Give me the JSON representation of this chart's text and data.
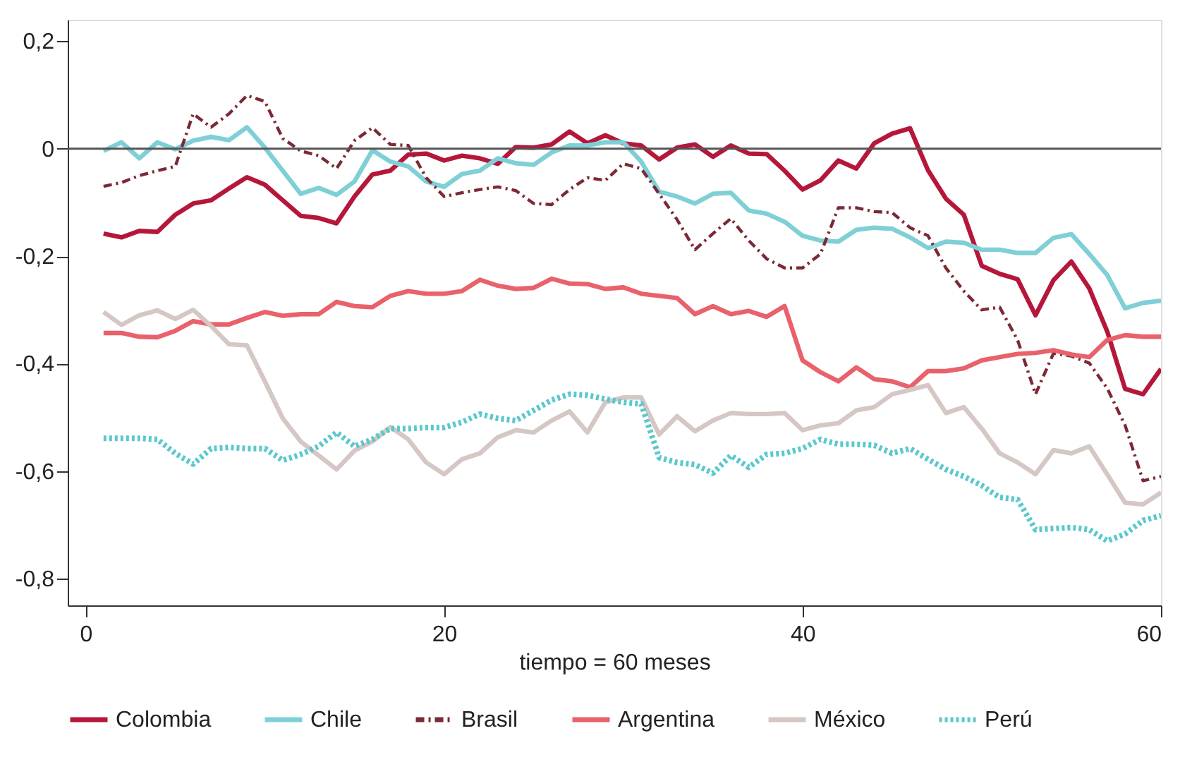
{
  "chart_data": {
    "type": "line",
    "xlabel": "tiempo = 60 meses",
    "x": [
      1,
      2,
      3,
      4,
      5,
      6,
      7,
      8,
      9,
      10,
      11,
      12,
      13,
      14,
      15,
      16,
      17,
      18,
      19,
      20,
      21,
      22,
      23,
      24,
      25,
      26,
      27,
      28,
      29,
      30,
      31,
      32,
      33,
      34,
      35,
      36,
      37,
      38,
      39,
      40,
      41,
      42,
      43,
      44,
      45,
      46,
      47,
      48,
      49,
      50,
      51,
      52,
      53,
      54,
      55,
      56,
      57,
      58,
      59,
      60
    ],
    "series": [
      {
        "name": "Colombia",
        "color": "#b5173a",
        "line_style": "solid",
        "values": [
          -0.158,
          -0.165,
          -0.153,
          -0.155,
          -0.123,
          -0.102,
          -0.096,
          -0.074,
          -0.053,
          -0.067,
          -0.096,
          -0.125,
          -0.129,
          -0.139,
          -0.089,
          -0.048,
          -0.041,
          -0.011,
          -0.009,
          -0.022,
          -0.013,
          -0.018,
          -0.028,
          0.003,
          0.002,
          0.008,
          0.032,
          0.01,
          0.025,
          0.01,
          0.006,
          -0.02,
          0.002,
          0.008,
          -0.015,
          0.006,
          -0.009,
          -0.01,
          -0.041,
          -0.076,
          -0.059,
          -0.022,
          -0.037,
          0.01,
          0.028,
          0.038,
          -0.04,
          -0.093,
          -0.123,
          -0.218,
          -0.233,
          -0.243,
          -0.31,
          -0.245,
          -0.21,
          -0.26,
          -0.34,
          -0.447,
          -0.457,
          -0.41
        ]
      },
      {
        "name": "Chile",
        "color": "#7fd0d6",
        "line_style": "solid",
        "values": [
          -0.004,
          0.012,
          -0.018,
          0.012,
          -0.001,
          0.015,
          0.022,
          0.016,
          0.04,
          0.002,
          -0.041,
          -0.084,
          -0.073,
          -0.086,
          -0.061,
          -0.003,
          -0.024,
          -0.033,
          -0.061,
          -0.071,
          -0.047,
          -0.041,
          -0.018,
          -0.027,
          -0.03,
          -0.007,
          0.006,
          0.006,
          0.012,
          0.012,
          -0.024,
          -0.08,
          -0.089,
          -0.102,
          -0.084,
          -0.082,
          -0.115,
          -0.121,
          -0.136,
          -0.162,
          -0.171,
          -0.173,
          -0.151,
          -0.147,
          -0.149,
          -0.165,
          -0.185,
          -0.173,
          -0.175,
          -0.188,
          -0.188,
          -0.194,
          -0.194,
          -0.166,
          -0.159,
          -0.196,
          -0.235,
          -0.297,
          -0.287,
          -0.283
        ]
      },
      {
        "name": "Brasil",
        "color": "#7b2a35",
        "line_style": "dashdot",
        "values": [
          -0.07,
          -0.063,
          -0.05,
          -0.041,
          -0.033,
          0.065,
          0.04,
          0.065,
          0.099,
          0.088,
          0.019,
          -0.004,
          -0.013,
          -0.037,
          0.015,
          0.039,
          0.008,
          0.006,
          -0.054,
          -0.089,
          -0.082,
          -0.076,
          -0.071,
          -0.078,
          -0.102,
          -0.104,
          -0.076,
          -0.054,
          -0.059,
          -0.028,
          -0.037,
          -0.084,
          -0.132,
          -0.188,
          -0.158,
          -0.13,
          -0.171,
          -0.205,
          -0.222,
          -0.222,
          -0.196,
          -0.11,
          -0.11,
          -0.117,
          -0.119,
          -0.147,
          -0.162,
          -0.222,
          -0.265,
          -0.3,
          -0.295,
          -0.356,
          -0.457,
          -0.381,
          -0.386,
          -0.399,
          -0.446,
          -0.515,
          -0.618,
          -0.61
        ]
      },
      {
        "name": "Argentina",
        "color": "#e8616b",
        "line_style": "solid",
        "values": [
          -0.343,
          -0.343,
          -0.35,
          -0.351,
          -0.339,
          -0.321,
          -0.327,
          -0.327,
          -0.315,
          -0.304,
          -0.311,
          -0.308,
          -0.308,
          -0.285,
          -0.293,
          -0.295,
          -0.274,
          -0.265,
          -0.27,
          -0.27,
          -0.265,
          -0.244,
          -0.255,
          -0.261,
          -0.259,
          -0.242,
          -0.251,
          -0.252,
          -0.261,
          -0.258,
          -0.27,
          -0.274,
          -0.278,
          -0.308,
          -0.293,
          -0.308,
          -0.302,
          -0.313,
          -0.293,
          -0.394,
          -0.416,
          -0.433,
          -0.407,
          -0.429,
          -0.433,
          -0.444,
          -0.414,
          -0.414,
          -0.409,
          -0.394,
          -0.388,
          -0.382,
          -0.38,
          -0.375,
          -0.383,
          -0.388,
          -0.356,
          -0.347,
          -0.35,
          -0.35
        ]
      },
      {
        "name": "México",
        "color": "#d4c7c4",
        "line_style": "solid",
        "values": [
          -0.304,
          -0.328,
          -0.31,
          -0.301,
          -0.317,
          -0.3,
          -0.33,
          -0.364,
          -0.366,
          -0.433,
          -0.502,
          -0.545,
          -0.571,
          -0.597,
          -0.562,
          -0.545,
          -0.518,
          -0.541,
          -0.584,
          -0.606,
          -0.578,
          -0.567,
          -0.537,
          -0.524,
          -0.528,
          -0.506,
          -0.489,
          -0.528,
          -0.472,
          -0.463,
          -0.463,
          -0.532,
          -0.498,
          -0.526,
          -0.506,
          -0.492,
          -0.494,
          -0.494,
          -0.492,
          -0.524,
          -0.515,
          -0.511,
          -0.487,
          -0.481,
          -0.457,
          -0.449,
          -0.44,
          -0.492,
          -0.481,
          -0.521,
          -0.567,
          -0.584,
          -0.606,
          -0.561,
          -0.567,
          -0.554,
          -0.606,
          -0.659,
          -0.662,
          -0.64
        ]
      },
      {
        "name": "Perú",
        "color": "#5bc8cc",
        "line_style": "dotted",
        "values": [
          -0.539,
          -0.539,
          -0.539,
          -0.541,
          -0.567,
          -0.587,
          -0.558,
          -0.556,
          -0.558,
          -0.558,
          -0.58,
          -0.569,
          -0.554,
          -0.528,
          -0.554,
          -0.541,
          -0.521,
          -0.521,
          -0.519,
          -0.519,
          -0.509,
          -0.494,
          -0.502,
          -0.506,
          -0.487,
          -0.468,
          -0.457,
          -0.459,
          -0.466,
          -0.472,
          -0.475,
          -0.575,
          -0.584,
          -0.588,
          -0.604,
          -0.571,
          -0.593,
          -0.569,
          -0.567,
          -0.558,
          -0.541,
          -0.55,
          -0.55,
          -0.552,
          -0.567,
          -0.558,
          -0.578,
          -0.597,
          -0.61,
          -0.627,
          -0.649,
          -0.653,
          -0.709,
          -0.707,
          -0.705,
          -0.709,
          -0.73,
          -0.717,
          -0.692,
          -0.683
        ]
      }
    ],
    "xlim": [
      -1,
      60
    ],
    "xticks": [
      0,
      20,
      40,
      60
    ],
    "ylim": [
      -0.85,
      0.24
    ],
    "yticks": [
      {
        "value": -0.8,
        "label": "-0,8"
      },
      {
        "value": -0.6,
        "label": "-0,6"
      },
      {
        "value": -0.4,
        "label": "-0,4"
      },
      {
        "value": -0.2,
        "label": "-0,2"
      },
      0,
      {
        "value": 0.2,
        "label": "0,2"
      }
    ],
    "ref_lines": [
      {
        "axis": "y",
        "value": 0,
        "color": "#555555"
      }
    ],
    "grid": false,
    "legend": "bottom"
  }
}
